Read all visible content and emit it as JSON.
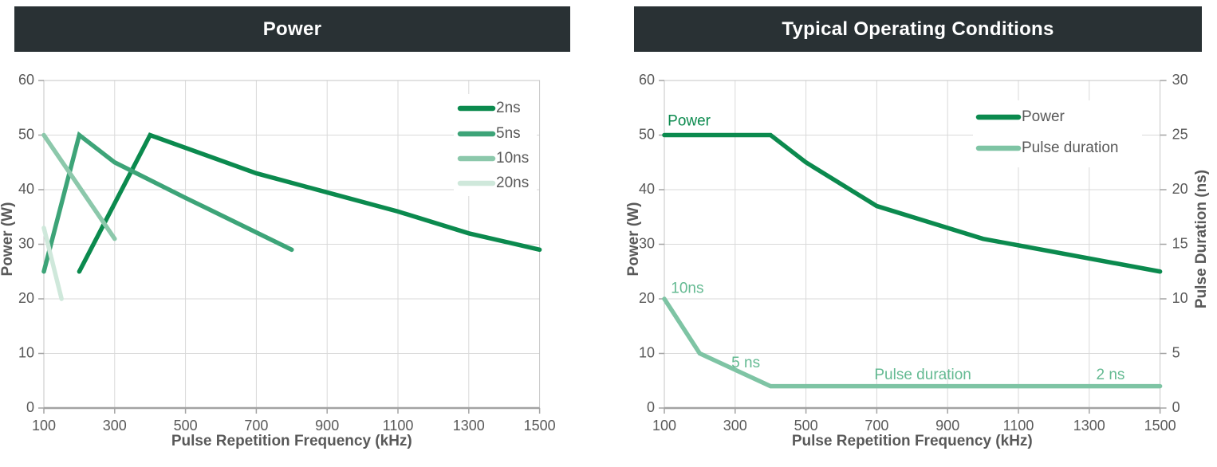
{
  "colors": {
    "header_bg": "#293134",
    "header_text": "#ffffff",
    "axis_text": "#595959",
    "grid": "#d9d9d9",
    "border": "#c6c6c6",
    "axis_line": "#a3a3a3",
    "green_dark": "#0b8a4e",
    "green_medium": "#3da478",
    "green_light": "#8cc8ab",
    "green_pale": "#cfe8db",
    "green_annotation": "#64ba92"
  },
  "chart_data": [
    {
      "type": "line",
      "title": "Power",
      "xlabel": "Pulse Repetition Frequency (kHz)",
      "ylabel": "Power (W)",
      "xlim": [
        100,
        1500
      ],
      "ylim": [
        0,
        60
      ],
      "xticks": [
        100,
        300,
        500,
        700,
        900,
        1100,
        1300,
        1500
      ],
      "yticks": [
        0,
        10,
        20,
        30,
        40,
        50,
        60
      ],
      "grid": true,
      "legend_position": "top-right-inside",
      "series": [
        {
          "name": "2ns",
          "color": "#0b8a4e",
          "x": [
            200,
            400,
            700,
            900,
            1100,
            1300,
            1500
          ],
          "y": [
            25,
            50,
            43,
            39.5,
            36,
            32,
            29
          ]
        },
        {
          "name": "5ns",
          "color": "#3da478",
          "x": [
            100,
            200,
            300,
            500,
            800
          ],
          "y": [
            25,
            50,
            45,
            38.5,
            29
          ]
        },
        {
          "name": "10ns",
          "color": "#8cc8ab",
          "x": [
            100,
            200,
            300
          ],
          "y": [
            50,
            40.5,
            31
          ]
        },
        {
          "name": "20ns",
          "color": "#cfe8db",
          "x": [
            100,
            150
          ],
          "y": [
            33,
            20
          ]
        }
      ]
    },
    {
      "type": "line",
      "title": "Typical Operating Conditions",
      "xlabel": "Pulse Repetition Frequency (kHz)",
      "ylabel_left": "Power (W)",
      "ylabel_right": "Pulse Duration (ns)",
      "xlim": [
        100,
        1500
      ],
      "ylim_left": [
        0,
        60
      ],
      "ylim_right": [
        0,
        30
      ],
      "xticks": [
        100,
        300,
        500,
        700,
        900,
        1100,
        1300,
        1500
      ],
      "yticks_left": [
        0,
        10,
        20,
        30,
        40,
        50,
        60
      ],
      "yticks_right": [
        0,
        5,
        10,
        15,
        20,
        25,
        30
      ],
      "grid": true,
      "legend_position": "top-right-inside",
      "series": [
        {
          "name": "Power",
          "axis": "left",
          "color": "#0b8a4e",
          "x": [
            100,
            400,
            500,
            700,
            1000,
            1500
          ],
          "y": [
            50,
            50,
            45,
            37,
            31,
            25
          ]
        },
        {
          "name": "Pulse duration",
          "axis": "right",
          "color": "#7ec4a4",
          "x": [
            100,
            200,
            400,
            1500
          ],
          "y": [
            10,
            5,
            2,
            2
          ]
        }
      ],
      "annotations": [
        {
          "text": "Power",
          "x": 170,
          "y": 52.5,
          "axis": "left",
          "color": "#0b8a4e"
        },
        {
          "text": "10ns",
          "x": 165,
          "y": 21.8,
          "axis": "left",
          "color": "#64ba92"
        },
        {
          "text": "5 ns",
          "x": 330,
          "y": 8.2,
          "axis": "left",
          "color": "#64ba92"
        },
        {
          "text": "Pulse duration",
          "x": 830,
          "y": 6.0,
          "axis": "left",
          "color": "#64ba92"
        },
        {
          "text": "2 ns",
          "x": 1360,
          "y": 6.0,
          "axis": "left",
          "color": "#64ba92"
        }
      ]
    }
  ]
}
